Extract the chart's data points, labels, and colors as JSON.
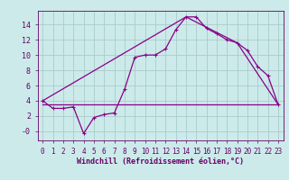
{
  "xlabel": "Windchill (Refroidissement éolien,°C)",
  "background_color": "#cceaea",
  "grid_color": "#aacccc",
  "line_color": "#880088",
  "x_ticks": [
    0,
    1,
    2,
    3,
    4,
    5,
    6,
    7,
    8,
    9,
    10,
    11,
    12,
    13,
    14,
    15,
    16,
    17,
    18,
    19,
    20,
    21,
    22,
    23
  ],
  "y_ticks": [
    0,
    2,
    4,
    6,
    8,
    10,
    12,
    14
  ],
  "ylim": [
    -1.2,
    15.8
  ],
  "xlim": [
    -0.5,
    23.5
  ],
  "line1_x": [
    0,
    1,
    2,
    3,
    4,
    5,
    6,
    7,
    8,
    9,
    10,
    11,
    12,
    13,
    14,
    15,
    16,
    17,
    18,
    19,
    20,
    21,
    22,
    23
  ],
  "line1_y": [
    4.0,
    3.0,
    3.0,
    3.2,
    -0.3,
    1.8,
    2.2,
    2.4,
    5.5,
    9.7,
    10.0,
    10.0,
    10.8,
    13.3,
    15.0,
    15.0,
    13.5,
    12.8,
    12.0,
    11.6,
    10.6,
    8.5,
    7.3,
    3.5
  ],
  "line2_x": [
    0,
    23
  ],
  "line2_y": [
    3.5,
    3.5
  ],
  "line3_x": [
    0,
    14,
    19,
    23
  ],
  "line3_y": [
    4.0,
    15.0,
    11.6,
    3.5
  ],
  "xlabel_fontsize": 6,
  "tick_fontsize": 5.5
}
